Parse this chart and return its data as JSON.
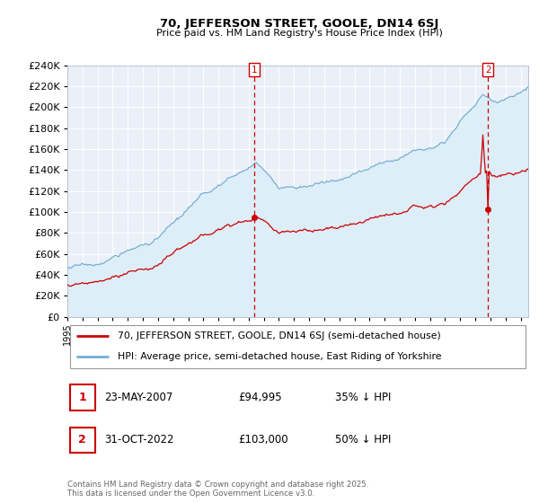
{
  "title": "70, JEFFERSON STREET, GOOLE, DN14 6SJ",
  "subtitle": "Price paid vs. HM Land Registry's House Price Index (HPI)",
  "legend_property": "70, JEFFERSON STREET, GOOLE, DN14 6SJ (semi-detached house)",
  "legend_hpi": "HPI: Average price, semi-detached house, East Riding of Yorkshire",
  "annotation1_date": "23-MAY-2007",
  "annotation1_price": "£94,995",
  "annotation1_hpi": "35% ↓ HPI",
  "annotation1_year": 2007.37,
  "annotation1_value": 94995,
  "annotation2_date": "31-OCT-2022",
  "annotation2_price": "£103,000",
  "annotation2_hpi": "50% ↓ HPI",
  "annotation2_year": 2022.83,
  "annotation2_value": 103000,
  "property_color": "#cc0000",
  "hpi_color": "#74afd3",
  "hpi_fill_color": "#ddeef8",
  "background_color": "#eaf0f8",
  "grid_color": "#ffffff",
  "border_color": "#b0b8c8",
  "ylim": [
    0,
    240000
  ],
  "ytick_step": 20000,
  "xlim_start": 1995.0,
  "xlim_end": 2025.5,
  "footer": "Contains HM Land Registry data © Crown copyright and database right 2025.\nThis data is licensed under the Open Government Licence v3.0."
}
